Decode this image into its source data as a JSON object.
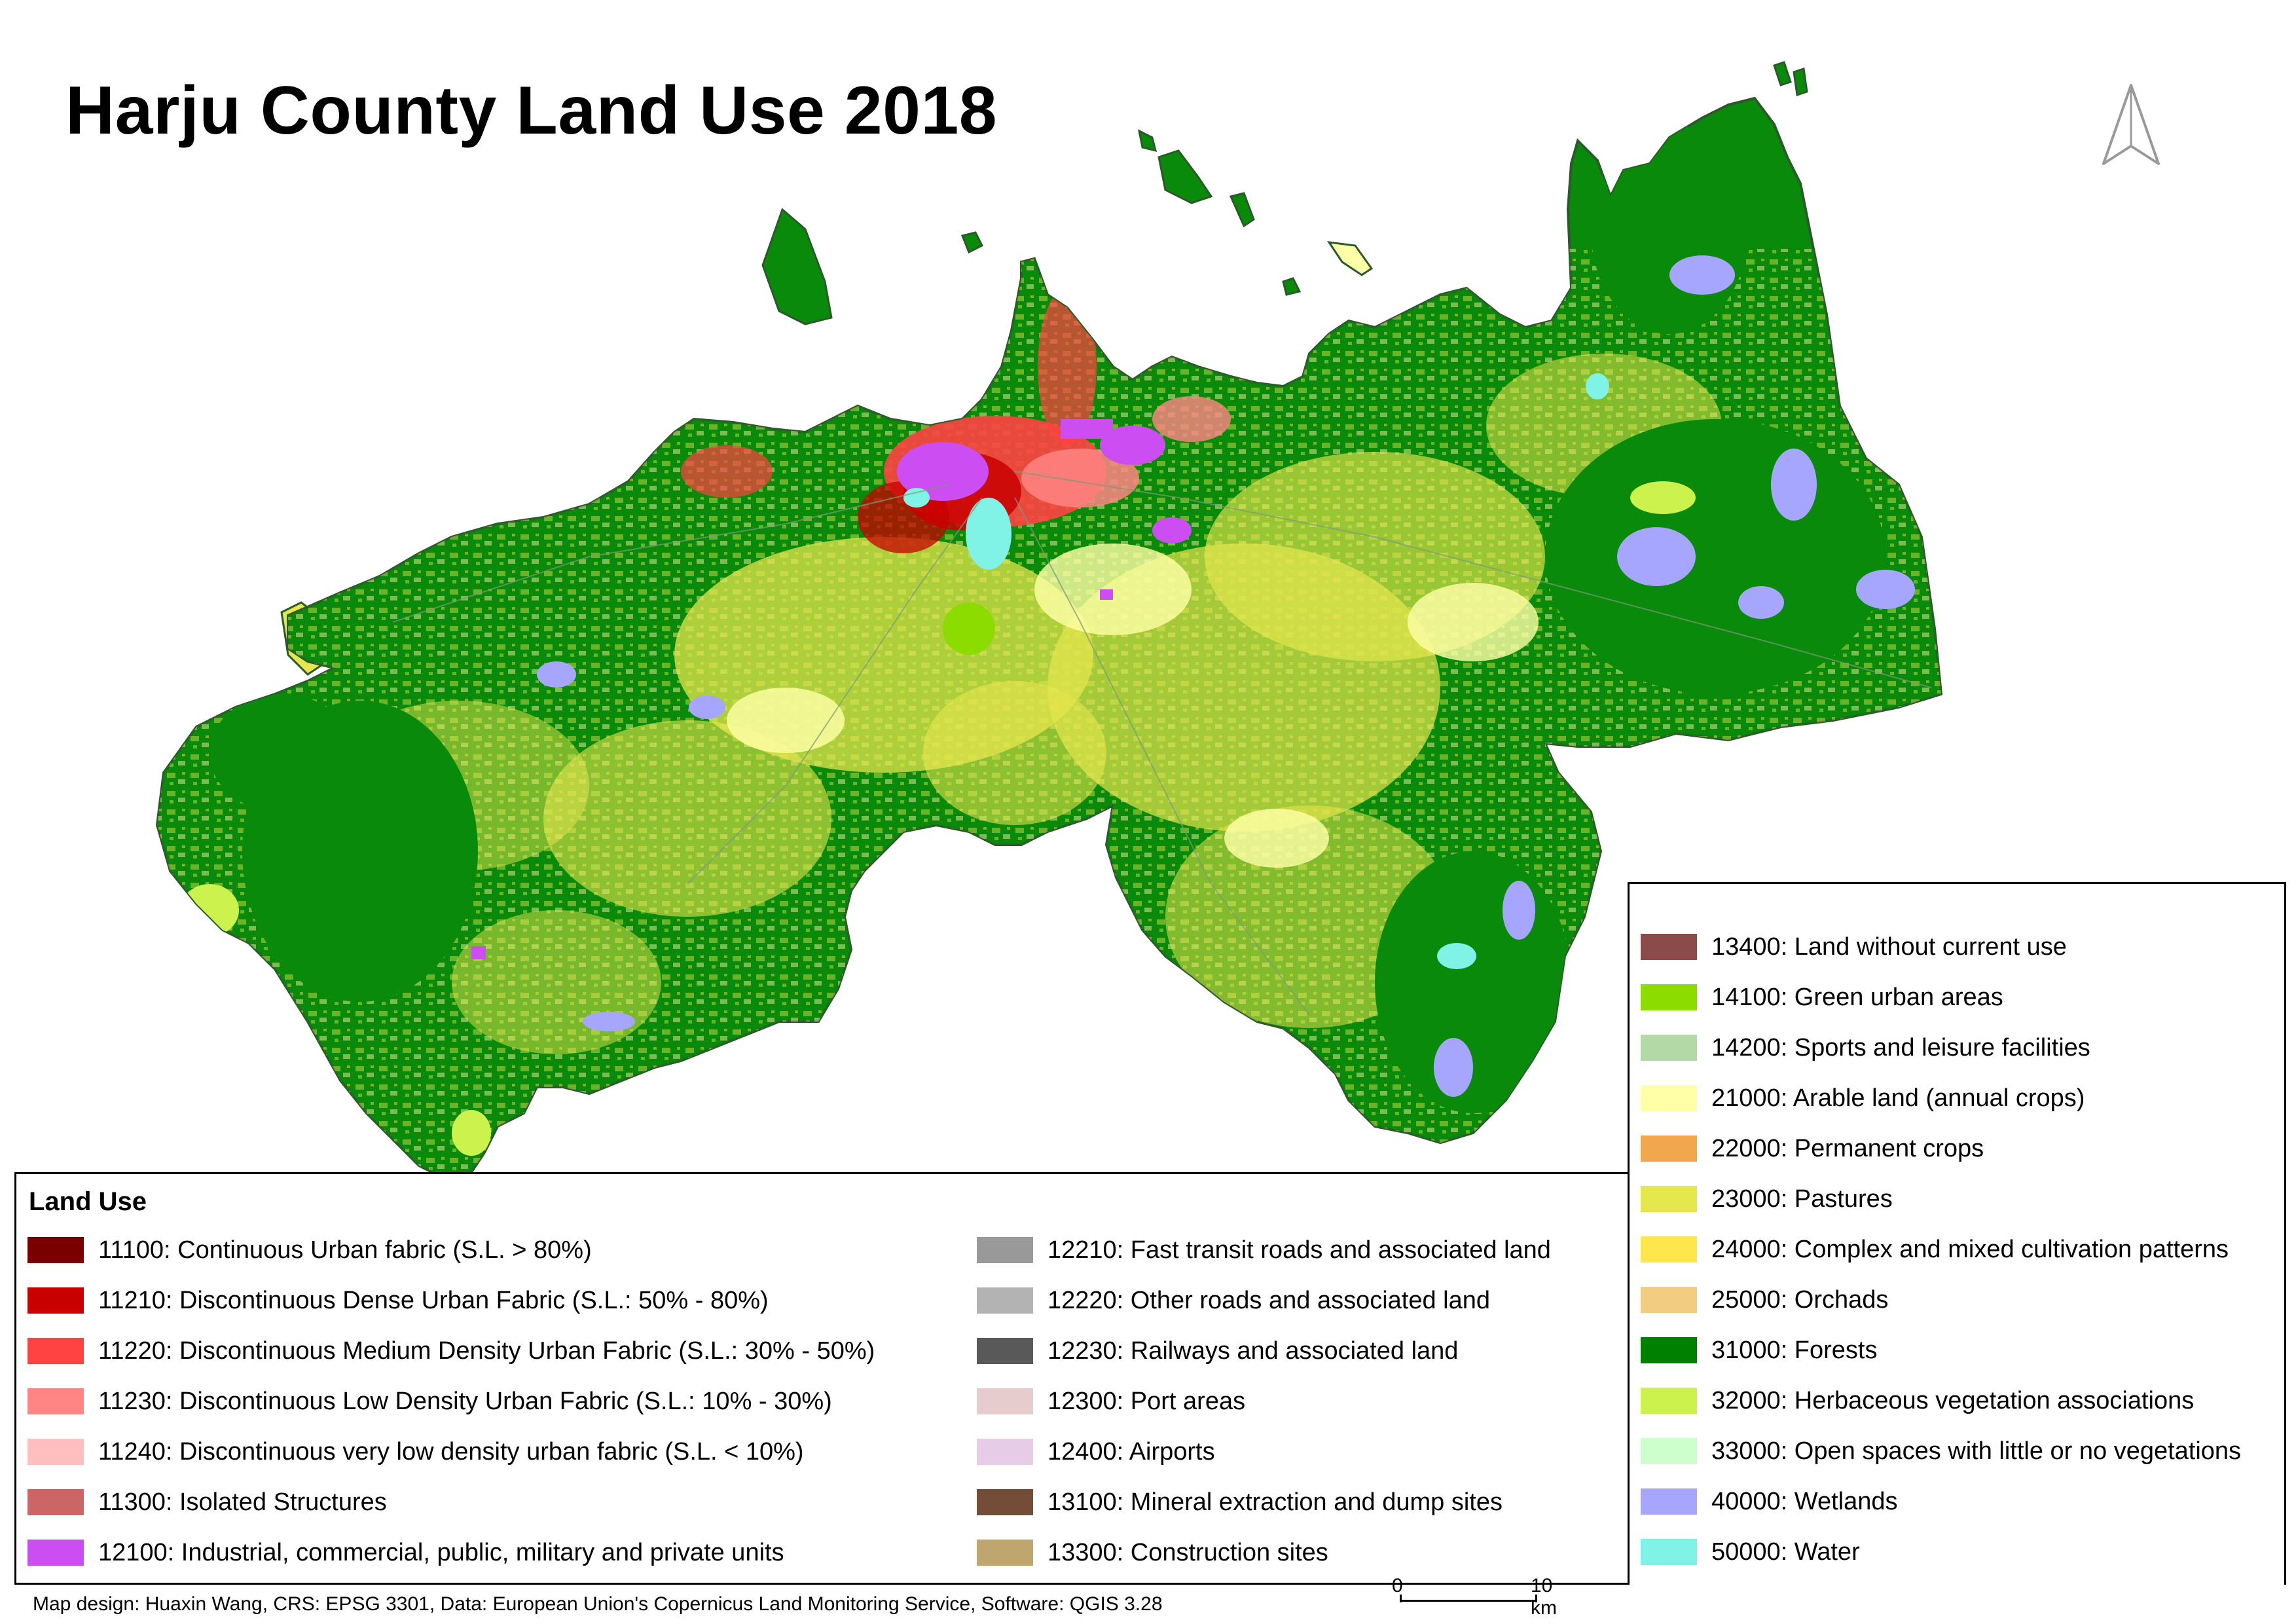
{
  "title": "Harju County Land Use 2018",
  "legend_title": "Land Use",
  "legend": {
    "col1": [
      {
        "label": "11100: Continuous Urban fabric (S.L. > 80%)",
        "color": "#7a0000"
      },
      {
        "label": "11210: Discontinuous Dense Urban Fabric (S.L.: 50% - 80%)",
        "color": "#c80000"
      },
      {
        "label": "11220: Discontinuous Medium Density Urban Fabric (S.L.: 30% - 50%)",
        "color": "#ff4242"
      },
      {
        "label": "11230: Discontinuous Low Density Urban Fabric (S.L.: 10% - 30%)",
        "color": "#ff8585"
      },
      {
        "label": "11240: Discontinuous very low density urban fabric (S.L. < 10%)",
        "color": "#ffbfbf"
      },
      {
        "label": "11300: Isolated Structures",
        "color": "#cc6666"
      },
      {
        "label": "12100: Industrial, commercial, public, military and private units",
        "color": "#cc4df2"
      }
    ],
    "col2": [
      {
        "label": "12210: Fast transit roads and associated land",
        "color": "#999999"
      },
      {
        "label": "12220: Other roads and associated land",
        "color": "#b3b3b3"
      },
      {
        "label": "12230: Railways and associated land",
        "color": "#595959"
      },
      {
        "label": "12300: Port areas",
        "color": "#e6cccc"
      },
      {
        "label": "12400: Airports",
        "color": "#e6cce6"
      },
      {
        "label": "13100: Mineral extraction and dump sites",
        "color": "#734d37"
      },
      {
        "label": "13300: Construction sites",
        "color": "#bfa66e"
      }
    ],
    "col3": [
      {
        "label": "13400: Land without current use",
        "color": "#8c4a4a"
      },
      {
        "label": "14100: Green urban areas",
        "color": "#8cdc00"
      },
      {
        "label": "14200: Sports and leisure facilities",
        "color": "#b3d9a6"
      },
      {
        "label": "21000: Arable land (annual crops)",
        "color": "#ffffa8"
      },
      {
        "label": "22000: Permanent crops",
        "color": "#f2a64d"
      },
      {
        "label": "23000: Pastures",
        "color": "#e6e64d"
      },
      {
        "label": "24000: Complex and mixed cultivation patterns",
        "color": "#ffe64d"
      },
      {
        "label": "25000: Orchads",
        "color": "#f2cc80"
      },
      {
        "label": "31000: Forests",
        "color": "#008000"
      },
      {
        "label": "32000: Herbaceous vegetation associations",
        "color": "#ccf24d"
      },
      {
        "label": "33000: Open spaces with little or no vegetations",
        "color": "#ccffcc"
      },
      {
        "label": "40000: Wetlands",
        "color": "#a6a6ff"
      },
      {
        "label": "50000: Water",
        "color": "#80f2e6"
      }
    ]
  },
  "footer": "Map design: Huaxin Wang, CRS: EPSG 3301, Data: European Union's Copernicus Land Monitoring Service, Software: QGIS 3.28",
  "scale_bar": {
    "start_label": "0",
    "end_label": "10 km"
  },
  "colors": {
    "forest": "#0a8a0a",
    "pasture": "#e6e64d",
    "arable": "#ffffa8",
    "urban_dense": "#c80000",
    "urban_medium": "#ff4242",
    "industrial": "#cc4df2",
    "wetland": "#a6a6ff",
    "water": "#80f2e6",
    "green_urban": "#8cdc00",
    "herbaceous": "#ccf24d",
    "outline": "#2a5a2a"
  },
  "icons": {
    "north": "north-arrow-icon"
  }
}
